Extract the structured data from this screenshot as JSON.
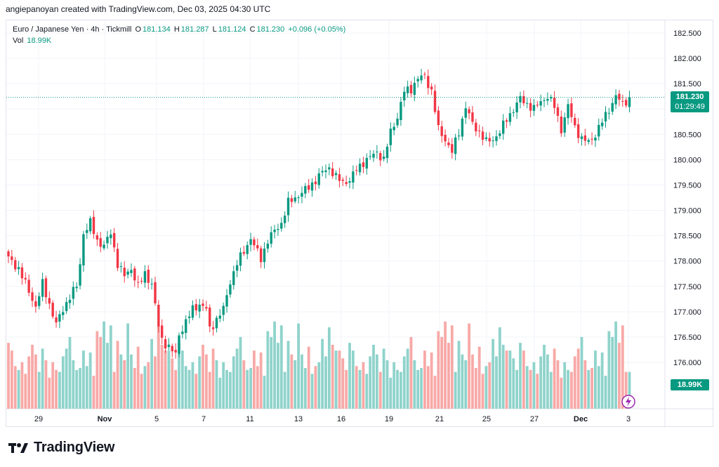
{
  "caption": "angiepanoyan created with TradingView.com, Dec 03, 2025 04:30 UTC",
  "legend": {
    "symbol": "Euro / Japanese Yen · 4h · Tickmill",
    "o_label": "O",
    "o_value": "181.134",
    "h_label": "H",
    "h_value": "181.287",
    "l_label": "L",
    "l_value": "181.124",
    "c_label": "C",
    "c_value": "181.230",
    "change": "+0.096 (+0.05%)",
    "vol_label": "Vol",
    "vol_value": "18.99K"
  },
  "price_tag": {
    "price": "181.230",
    "countdown": "01:29:49"
  },
  "vol_tag": "18.99K",
  "footer": {
    "brand": "TradingView"
  },
  "colors": {
    "up": "#089981",
    "down": "#f23645",
    "vol_up": "#8fd3cb",
    "vol_down": "#f7a9a7",
    "grid": "#f0f3fa"
  },
  "chart_data": {
    "type": "candlestick",
    "title": "Euro / Japanese Yen · 4h · Tickmill",
    "y_ticks": [
      "182.500",
      "182.000",
      "181.500",
      "181.000",
      "180.500",
      "180.000",
      "179.500",
      "179.000",
      "178.500",
      "178.000",
      "177.500",
      "177.000",
      "176.500",
      "176.000"
    ],
    "y_range": [
      175.5,
      182.7
    ],
    "x_ticks": [
      "29",
      "Nov",
      "5",
      "7",
      "11",
      "13",
      "16",
      "19",
      "21",
      "25",
      "27",
      "Dec",
      "3"
    ],
    "last_price": 181.23,
    "close_path": [
      [
        0,
        178.05
      ],
      [
        3,
        177.85
      ],
      [
        6,
        177.4
      ],
      [
        8,
        177.1
      ],
      [
        10,
        177.55
      ],
      [
        12,
        177.15
      ],
      [
        14,
        176.75
      ],
      [
        16,
        177.05
      ],
      [
        18,
        177.3
      ],
      [
        20,
        177.5
      ],
      [
        21,
        177.95
      ],
      [
        22,
        178.55
      ],
      [
        24,
        178.75
      ],
      [
        26,
        178.4
      ],
      [
        28,
        178.3
      ],
      [
        30,
        178.55
      ],
      [
        32,
        177.95
      ],
      [
        34,
        177.7
      ],
      [
        36,
        177.85
      ],
      [
        38,
        177.5
      ],
      [
        40,
        177.75
      ],
      [
        42,
        177.55
      ],
      [
        44,
        176.7
      ],
      [
        45,
        176.45
      ],
      [
        47,
        176.3
      ],
      [
        49,
        176.15
      ],
      [
        50,
        176.55
      ],
      [
        52,
        176.8
      ],
      [
        54,
        177.05
      ],
      [
        56,
        177.15
      ],
      [
        58,
        177.05
      ],
      [
        59,
        176.65
      ],
      [
        61,
        176.85
      ],
      [
        63,
        177.05
      ],
      [
        65,
        177.6
      ],
      [
        67,
        177.95
      ],
      [
        69,
        178.2
      ],
      [
        71,
        178.45
      ],
      [
        72,
        178.3
      ],
      [
        74,
        178.05
      ],
      [
        76,
        178.4
      ],
      [
        78,
        178.6
      ],
      [
        80,
        178.75
      ],
      [
        82,
        179.15
      ],
      [
        84,
        179.25
      ],
      [
        86,
        179.35
      ],
      [
        88,
        179.45
      ],
      [
        90,
        179.6
      ],
      [
        92,
        179.75
      ],
      [
        94,
        179.85
      ],
      [
        96,
        179.65
      ],
      [
        98,
        179.55
      ],
      [
        100,
        179.6
      ],
      [
        102,
        179.8
      ],
      [
        104,
        179.95
      ],
      [
        106,
        180.05
      ],
      [
        108,
        180.15
      ],
      [
        110,
        180.0
      ],
      [
        112,
        180.55
      ],
      [
        114,
        180.85
      ],
      [
        116,
        181.35
      ],
      [
        118,
        181.4
      ],
      [
        120,
        181.6
      ],
      [
        122,
        181.65
      ],
      [
        124,
        181.35
      ],
      [
        126,
        180.6
      ],
      [
        128,
        180.4
      ],
      [
        130,
        180.15
      ],
      [
        132,
        180.55
      ],
      [
        134,
        181.05
      ],
      [
        136,
        180.7
      ],
      [
        138,
        180.55
      ],
      [
        140,
        180.35
      ],
      [
        142,
        180.4
      ],
      [
        144,
        180.55
      ],
      [
        146,
        180.8
      ],
      [
        148,
        181.0
      ],
      [
        150,
        181.2
      ],
      [
        152,
        181.1
      ],
      [
        154,
        181.0
      ],
      [
        156,
        181.15
      ],
      [
        158,
        181.25
      ],
      [
        160,
        181.05
      ],
      [
        162,
        180.6
      ],
      [
        164,
        181.05
      ],
      [
        166,
        180.65
      ],
      [
        168,
        180.4
      ],
      [
        170,
        180.35
      ],
      [
        172,
        180.5
      ],
      [
        174,
        180.75
      ],
      [
        176,
        181.0
      ],
      [
        178,
        181.25
      ],
      [
        180,
        181.1
      ],
      [
        182,
        181.23
      ]
    ],
    "volume_k": {
      "max_k": 50,
      "current_k": 18.99,
      "pattern": [
        34,
        30,
        22,
        20,
        24,
        18,
        27,
        33,
        28,
        19,
        31,
        25,
        16,
        24,
        20,
        19,
        27,
        31,
        37,
        25,
        20,
        21,
        30,
        22,
        29,
        17,
        40,
        37,
        45,
        34,
        43,
        19,
        35,
        28,
        25,
        44,
        28,
        21,
        32,
        18,
        22,
        24,
        36,
        27,
        42,
        33,
        30,
        30,
        26,
        20
      ]
    }
  }
}
